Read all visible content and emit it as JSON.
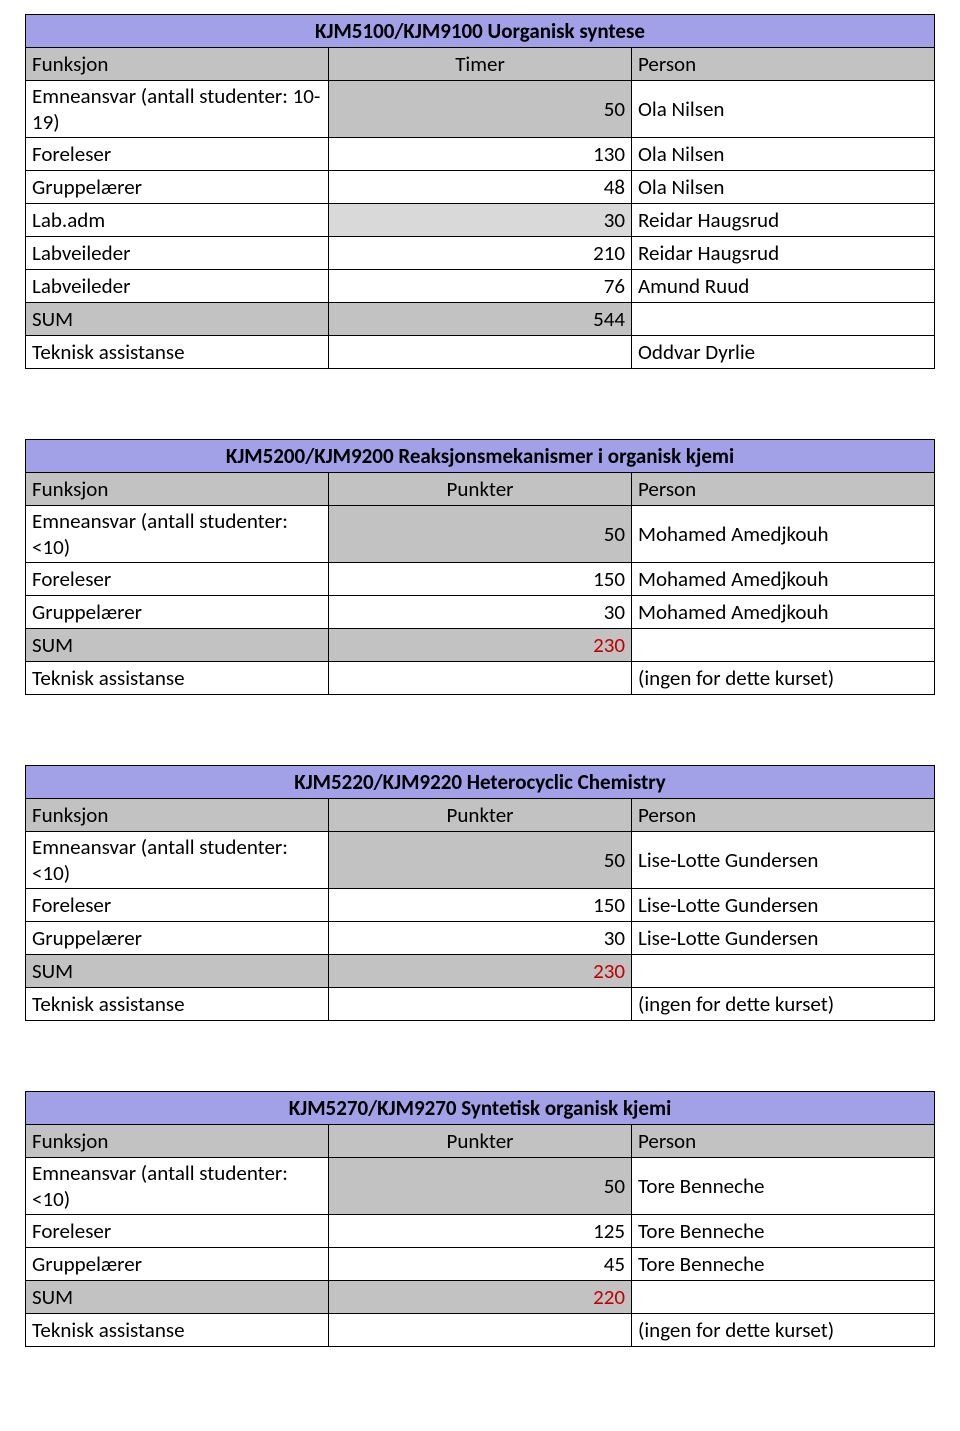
{
  "tables": [
    {
      "title": "KJM5100/KJM9100 Uorganisk syntese",
      "hdr_num": "Timer",
      "rows": [
        {
          "func": "Emneansvar (antall studenter: 10-19)",
          "num": "50",
          "num_shade": true,
          "person": "Ola Nilsen"
        },
        {
          "func": "Foreleser",
          "num": "130",
          "person": "Ola Nilsen"
        },
        {
          "func": "Gruppelærer",
          "num": "48",
          "person": "Ola Nilsen"
        },
        {
          "func": "Lab.adm",
          "num": "30",
          "num_light": true,
          "person": "Reidar Haugsrud"
        },
        {
          "func": "Labveileder",
          "num": "210",
          "person": "Reidar Haugsrud"
        },
        {
          "func": "Labveileder",
          "num": "76",
          "person": "Amund Ruud"
        }
      ],
      "sum": "544",
      "teknisk": "Oddvar Dyrlie"
    },
    {
      "title": "KJM5200/KJM9200 Reaksjonsmekanismer i organisk kjemi",
      "hdr_num": "Punkter",
      "rows": [
        {
          "func": "Emneansvar (antall studenter: <10)",
          "num": "50",
          "num_shade": true,
          "person": "Mohamed Amedjkouh"
        },
        {
          "func": "Foreleser",
          "num": "150",
          "person": "Mohamed Amedjkouh"
        },
        {
          "func": "Gruppelærer",
          "num": "30",
          "person": "Mohamed Amedjkouh"
        }
      ],
      "sum": "230",
      "sum_red": true,
      "teknisk": "(ingen for dette kurset)"
    },
    {
      "title": "KJM5220/KJM9220 Heterocyclic Chemistry",
      "hdr_num": "Punkter",
      "rows": [
        {
          "func": "Emneansvar (antall studenter: <10)",
          "num": "50",
          "num_shade": true,
          "person": "Lise-Lotte Gundersen"
        },
        {
          "func": "Foreleser",
          "num": "150",
          "person": "Lise-Lotte Gundersen"
        },
        {
          "func": "Gruppelærer",
          "num": "30",
          "person": "Lise-Lotte Gundersen"
        }
      ],
      "sum": "230",
      "sum_red": true,
      "teknisk": "(ingen for dette kurset)"
    },
    {
      "title": "KJM5270/KJM9270 Syntetisk organisk kjemi",
      "hdr_num": "Punkter",
      "rows": [
        {
          "func": "Emneansvar (antall studenter: <10)",
          "num": "50",
          "num_shade": true,
          "person": "Tore Benneche"
        },
        {
          "func": "Foreleser",
          "num": "125",
          "person": "Tore Benneche"
        },
        {
          "func": "Gruppelærer",
          "num": "45",
          "person": "Tore Benneche"
        }
      ],
      "sum": "220",
      "sum_red": true,
      "teknisk": "(ingen for dette kurset)"
    }
  ],
  "labels": {
    "funksjon": "Funksjon",
    "person": "Person",
    "sum": "SUM",
    "teknisk": "Teknisk assistanse"
  },
  "colors": {
    "title_bg": "#a2a0e6",
    "hdr_bg": "#c2c2c2",
    "shade_bg": "#c2c2c2",
    "light_bg": "#d9d9d9"
  }
}
